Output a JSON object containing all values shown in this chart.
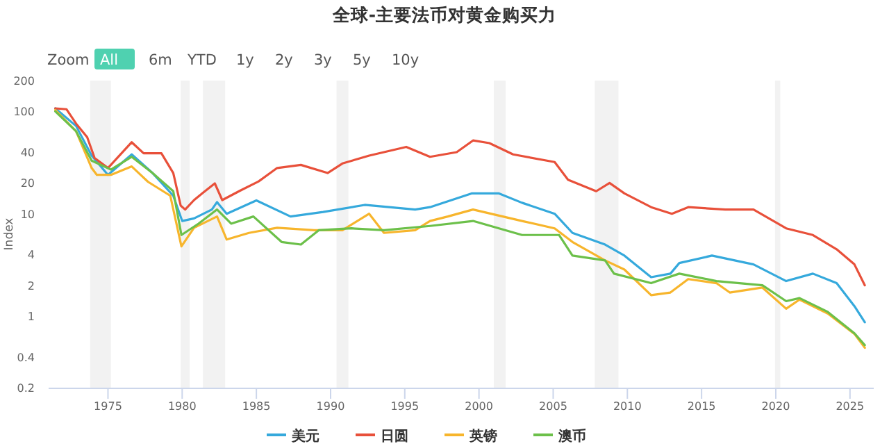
{
  "chart_data": {
    "type": "line",
    "title": "全球-主要法币对黄金购买力",
    "ylabel": "Index",
    "log": true,
    "legend": "bottom",
    "xlim": [
      1971,
      2026.6
    ],
    "xticks": [
      1975,
      1980,
      1985,
      1990,
      1995,
      2000,
      2005,
      2010,
      2015,
      2020,
      2025
    ],
    "ylim": [
      0.2,
      200
    ],
    "yticks": [
      0.2,
      0.4,
      1,
      2,
      4,
      10,
      20,
      40,
      100,
      200
    ],
    "annotations": [
      "Zoom",
      "All",
      "6m",
      "YTD",
      "1y",
      "2y",
      "3y",
      "5y",
      "10y"
    ],
    "bands": [
      {
        "axis": "x",
        "from": 1973.8,
        "to": 1975.2,
        "color": "#f2f2f2"
      },
      {
        "axis": "x",
        "from": 1979.9,
        "to": 1980.5,
        "color": "#f2f2f2"
      },
      {
        "axis": "x",
        "from": 1981.4,
        "to": 1982.9,
        "color": "#f2f2f2"
      },
      {
        "axis": "x",
        "from": 1990.4,
        "to": 1991.2,
        "color": "#f2f2f2"
      },
      {
        "axis": "x",
        "from": 2001.0,
        "to": 2001.8,
        "color": "#f2f2f2"
      },
      {
        "axis": "x",
        "from": 2007.8,
        "to": 2009.4,
        "color": "#f2f2f2"
      },
      {
        "axis": "x",
        "from": 2019.95,
        "to": 2020.3,
        "color": "#f2f2f2"
      }
    ],
    "series": [
      {
        "name": "美元",
        "color": "#35a9dc",
        "x": [
          1971.45,
          1972.85,
          1973.9,
          1975.0,
          1976.6,
          1978.0,
          1979.4,
          1980.0,
          1980.8,
          1982.0,
          1982.35,
          1983.0,
          1985.0,
          1987.3,
          1989.5,
          1992.3,
          1995.7,
          1996.7,
          1999.5,
          2001.35,
          2002.9,
          2005.1,
          2006.3,
          2008.5,
          2009.8,
          2011.6,
          2012.9,
          2013.5,
          2015.7,
          2018.5,
          2020.7,
          2022.5,
          2024.1,
          2025.3,
          2026.0
        ],
        "values": [
          107,
          72,
          37,
          24,
          38,
          25,
          15,
          8.5,
          9,
          11,
          13,
          10,
          13.5,
          9.4,
          10.4,
          12.2,
          11,
          11.6,
          15.8,
          15.8,
          12.8,
          10,
          6.5,
          5,
          3.9,
          2.4,
          2.6,
          3.3,
          3.9,
          3.2,
          2.2,
          2.6,
          2.1,
          1.25,
          0.87
        ]
      },
      {
        "name": "日圆",
        "color": "#e8503a",
        "x": [
          1971.45,
          1972.2,
          1972.85,
          1973.6,
          1974.1,
          1975.0,
          1976.6,
          1977.4,
          1978.6,
          1979.4,
          1979.9,
          1980.2,
          1980.8,
          1981.4,
          1982.2,
          1982.7,
          1983.9,
          1985.15,
          1986.4,
          1988.0,
          1989.8,
          1990.8,
          1992.6,
          1995.1,
          1996.7,
          1998.5,
          1999.6,
          2000.7,
          2002.3,
          2005.1,
          2006.0,
          2007.9,
          2008.8,
          2009.8,
          2011.6,
          2013.0,
          2014.1,
          2016.6,
          2018.5,
          2020.7,
          2022.5,
          2024.1,
          2025.3,
          2026.0
        ],
        "values": [
          107,
          105,
          76,
          56,
          35,
          28,
          50,
          39,
          39,
          25,
          12,
          11,
          13.6,
          16,
          19.8,
          13.6,
          16.8,
          20.7,
          28,
          30,
          25,
          31,
          37,
          45,
          36,
          40,
          52,
          49,
          38,
          32,
          21.5,
          16.6,
          20,
          15.8,
          11.6,
          10,
          11.6,
          11,
          11,
          7.2,
          6.2,
          4.5,
          3.2,
          2.0
        ]
      },
      {
        "name": "英镑",
        "color": "#f7b52c",
        "x": [
          1971.45,
          1972.85,
          1973.9,
          1974.25,
          1975.2,
          1976.6,
          1977.7,
          1979.2,
          1979.95,
          1980.8,
          1982.35,
          1983.0,
          1984.5,
          1986.4,
          1988.9,
          1990.8,
          1992.6,
          1993.6,
          1995.7,
          1996.7,
          1997.9,
          1999.6,
          2002.9,
          2005.1,
          2006.3,
          2008.5,
          2009.8,
          2011.6,
          2012.9,
          2014.1,
          2016.0,
          2016.9,
          2019.1,
          2020.7,
          2021.6,
          2023.5,
          2025.3,
          2026.0
        ],
        "values": [
          103,
          64,
          28,
          24,
          24,
          29,
          20.5,
          15,
          4.8,
          7.3,
          9.4,
          5.6,
          6.5,
          7.3,
          6.9,
          6.9,
          10,
          6.5,
          6.9,
          8.5,
          9.4,
          11,
          8.5,
          7.2,
          5.3,
          3.5,
          2.85,
          1.6,
          1.7,
          2.3,
          2.1,
          1.7,
          1.9,
          1.18,
          1.45,
          1.06,
          0.67,
          0.49
        ]
      },
      {
        "name": "澳币",
        "color": "#6cc04a",
        "x": [
          1971.45,
          1972.85,
          1973.9,
          1975.2,
          1976.6,
          1978.0,
          1979.4,
          1979.95,
          1981.1,
          1982.35,
          1983.3,
          1984.8,
          1986.7,
          1988.0,
          1989.2,
          1991.4,
          1993.6,
          1996.7,
          1999.6,
          2002.9,
          2005.4,
          2006.3,
          2008.5,
          2009.1,
          2011.6,
          2013.5,
          2016.0,
          2019.1,
          2020.7,
          2021.6,
          2023.5,
          2025.3,
          2026.0
        ],
        "values": [
          100,
          64,
          33,
          27,
          36,
          25,
          16.6,
          6.2,
          8,
          11,
          8,
          9.4,
          5.3,
          5,
          6.9,
          7.2,
          6.9,
          7.6,
          8.5,
          6.2,
          6.2,
          3.9,
          3.5,
          2.6,
          2.1,
          2.6,
          2.2,
          2.0,
          1.4,
          1.5,
          1.1,
          0.68,
          0.52
        ]
      }
    ]
  }
}
